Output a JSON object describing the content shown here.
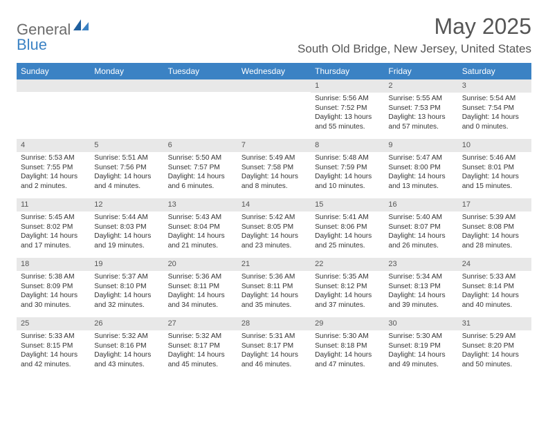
{
  "logo": {
    "part1": "General",
    "part2": "Blue"
  },
  "header": {
    "title": "May 2025",
    "location": "South Old Bridge, New Jersey, United States"
  },
  "colors": {
    "header_bg": "#3b82c4",
    "header_text": "#ffffff",
    "daynum_bg": "#e8e8e8",
    "body_text": "#333333",
    "title_text": "#555555"
  },
  "weekdays": [
    "Sunday",
    "Monday",
    "Tuesday",
    "Wednesday",
    "Thursday",
    "Friday",
    "Saturday"
  ],
  "weeks": [
    [
      {
        "blank": true
      },
      {
        "blank": true
      },
      {
        "blank": true
      },
      {
        "blank": true
      },
      {
        "n": "1",
        "sr": "Sunrise: 5:56 AM",
        "ss": "Sunset: 7:52 PM",
        "dl": "Daylight: 13 hours and 55 minutes."
      },
      {
        "n": "2",
        "sr": "Sunrise: 5:55 AM",
        "ss": "Sunset: 7:53 PM",
        "dl": "Daylight: 13 hours and 57 minutes."
      },
      {
        "n": "3",
        "sr": "Sunrise: 5:54 AM",
        "ss": "Sunset: 7:54 PM",
        "dl": "Daylight: 14 hours and 0 minutes."
      }
    ],
    [
      {
        "n": "4",
        "sr": "Sunrise: 5:53 AM",
        "ss": "Sunset: 7:55 PM",
        "dl": "Daylight: 14 hours and 2 minutes."
      },
      {
        "n": "5",
        "sr": "Sunrise: 5:51 AM",
        "ss": "Sunset: 7:56 PM",
        "dl": "Daylight: 14 hours and 4 minutes."
      },
      {
        "n": "6",
        "sr": "Sunrise: 5:50 AM",
        "ss": "Sunset: 7:57 PM",
        "dl": "Daylight: 14 hours and 6 minutes."
      },
      {
        "n": "7",
        "sr": "Sunrise: 5:49 AM",
        "ss": "Sunset: 7:58 PM",
        "dl": "Daylight: 14 hours and 8 minutes."
      },
      {
        "n": "8",
        "sr": "Sunrise: 5:48 AM",
        "ss": "Sunset: 7:59 PM",
        "dl": "Daylight: 14 hours and 10 minutes."
      },
      {
        "n": "9",
        "sr": "Sunrise: 5:47 AM",
        "ss": "Sunset: 8:00 PM",
        "dl": "Daylight: 14 hours and 13 minutes."
      },
      {
        "n": "10",
        "sr": "Sunrise: 5:46 AM",
        "ss": "Sunset: 8:01 PM",
        "dl": "Daylight: 14 hours and 15 minutes."
      }
    ],
    [
      {
        "n": "11",
        "sr": "Sunrise: 5:45 AM",
        "ss": "Sunset: 8:02 PM",
        "dl": "Daylight: 14 hours and 17 minutes."
      },
      {
        "n": "12",
        "sr": "Sunrise: 5:44 AM",
        "ss": "Sunset: 8:03 PM",
        "dl": "Daylight: 14 hours and 19 minutes."
      },
      {
        "n": "13",
        "sr": "Sunrise: 5:43 AM",
        "ss": "Sunset: 8:04 PM",
        "dl": "Daylight: 14 hours and 21 minutes."
      },
      {
        "n": "14",
        "sr": "Sunrise: 5:42 AM",
        "ss": "Sunset: 8:05 PM",
        "dl": "Daylight: 14 hours and 23 minutes."
      },
      {
        "n": "15",
        "sr": "Sunrise: 5:41 AM",
        "ss": "Sunset: 8:06 PM",
        "dl": "Daylight: 14 hours and 25 minutes."
      },
      {
        "n": "16",
        "sr": "Sunrise: 5:40 AM",
        "ss": "Sunset: 8:07 PM",
        "dl": "Daylight: 14 hours and 26 minutes."
      },
      {
        "n": "17",
        "sr": "Sunrise: 5:39 AM",
        "ss": "Sunset: 8:08 PM",
        "dl": "Daylight: 14 hours and 28 minutes."
      }
    ],
    [
      {
        "n": "18",
        "sr": "Sunrise: 5:38 AM",
        "ss": "Sunset: 8:09 PM",
        "dl": "Daylight: 14 hours and 30 minutes."
      },
      {
        "n": "19",
        "sr": "Sunrise: 5:37 AM",
        "ss": "Sunset: 8:10 PM",
        "dl": "Daylight: 14 hours and 32 minutes."
      },
      {
        "n": "20",
        "sr": "Sunrise: 5:36 AM",
        "ss": "Sunset: 8:11 PM",
        "dl": "Daylight: 14 hours and 34 minutes."
      },
      {
        "n": "21",
        "sr": "Sunrise: 5:36 AM",
        "ss": "Sunset: 8:11 PM",
        "dl": "Daylight: 14 hours and 35 minutes."
      },
      {
        "n": "22",
        "sr": "Sunrise: 5:35 AM",
        "ss": "Sunset: 8:12 PM",
        "dl": "Daylight: 14 hours and 37 minutes."
      },
      {
        "n": "23",
        "sr": "Sunrise: 5:34 AM",
        "ss": "Sunset: 8:13 PM",
        "dl": "Daylight: 14 hours and 39 minutes."
      },
      {
        "n": "24",
        "sr": "Sunrise: 5:33 AM",
        "ss": "Sunset: 8:14 PM",
        "dl": "Daylight: 14 hours and 40 minutes."
      }
    ],
    [
      {
        "n": "25",
        "sr": "Sunrise: 5:33 AM",
        "ss": "Sunset: 8:15 PM",
        "dl": "Daylight: 14 hours and 42 minutes."
      },
      {
        "n": "26",
        "sr": "Sunrise: 5:32 AM",
        "ss": "Sunset: 8:16 PM",
        "dl": "Daylight: 14 hours and 43 minutes."
      },
      {
        "n": "27",
        "sr": "Sunrise: 5:32 AM",
        "ss": "Sunset: 8:17 PM",
        "dl": "Daylight: 14 hours and 45 minutes."
      },
      {
        "n": "28",
        "sr": "Sunrise: 5:31 AM",
        "ss": "Sunset: 8:17 PM",
        "dl": "Daylight: 14 hours and 46 minutes."
      },
      {
        "n": "29",
        "sr": "Sunrise: 5:30 AM",
        "ss": "Sunset: 8:18 PM",
        "dl": "Daylight: 14 hours and 47 minutes."
      },
      {
        "n": "30",
        "sr": "Sunrise: 5:30 AM",
        "ss": "Sunset: 8:19 PM",
        "dl": "Daylight: 14 hours and 49 minutes."
      },
      {
        "n": "31",
        "sr": "Sunrise: 5:29 AM",
        "ss": "Sunset: 8:20 PM",
        "dl": "Daylight: 14 hours and 50 minutes."
      }
    ]
  ]
}
